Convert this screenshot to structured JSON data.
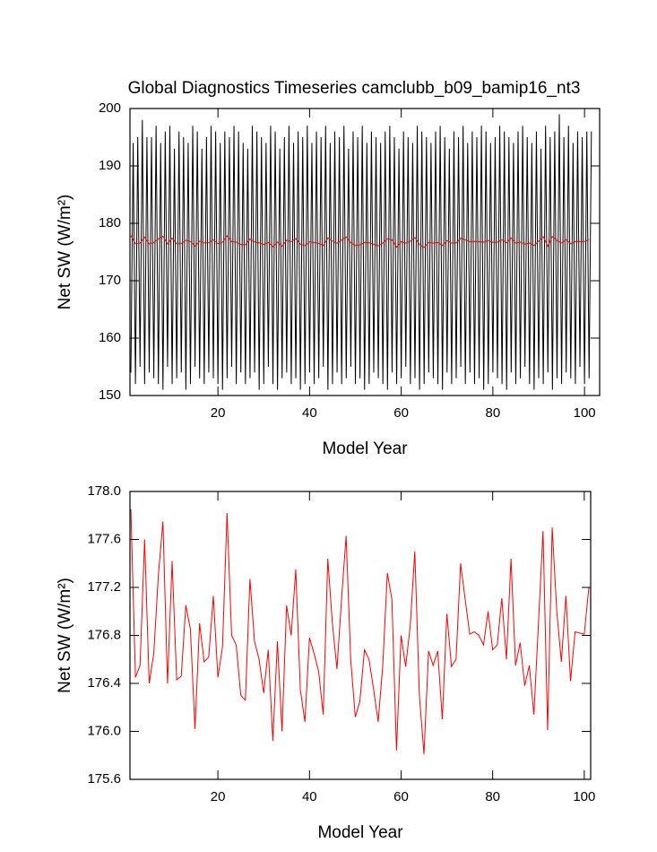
{
  "chart_data": [
    {
      "type": "line",
      "title": "Global Diagnostics Timeseries camclubb_b09_bamip16_nt3",
      "xlabel": "Model Year",
      "ylabel": "Net SW (W/m²)",
      "xlim": [
        0.8,
        103.3
      ],
      "ylim": [
        150,
        200
      ],
      "xticks": [
        20,
        40,
        60,
        80,
        100
      ],
      "yticks": [
        150,
        160,
        170,
        180,
        190,
        200
      ],
      "series": [
        {
          "color": "#000000",
          "x": [
            1,
            1.5,
            2,
            2.5,
            3,
            3.5,
            4,
            4.5,
            5,
            5.5,
            6,
            6.5,
            7,
            7.5,
            8,
            8.5,
            9,
            9.5,
            10,
            10.5,
            11,
            11.5,
            12,
            12.5,
            13,
            13.5,
            14,
            14.5,
            15,
            15.5,
            16,
            16.5,
            17,
            17.5,
            18,
            18.5,
            19,
            19.5,
            20,
            20.5,
            21,
            21.5,
            22,
            22.5,
            23,
            23.5,
            24,
            24.5,
            25,
            25.5,
            26,
            26.5,
            27,
            27.5,
            28,
            28.5,
            29,
            29.5,
            30,
            30.5,
            31,
            31.5,
            32,
            32.5,
            33,
            33.5,
            34,
            34.5,
            35,
            35.5,
            36,
            36.5,
            37,
            37.5,
            38,
            38.5,
            39,
            39.5,
            40,
            40.5,
            41,
            41.5,
            42,
            42.5,
            43,
            43.5,
            44,
            44.5,
            45,
            45.5,
            46,
            46.5,
            47,
            47.5,
            48,
            48.5,
            49,
            49.5,
            50,
            50.5,
            51,
            51.5,
            52,
            52.5,
            53,
            53.5,
            54,
            54.5,
            55,
            55.5,
            56,
            56.5,
            57,
            57.5,
            58,
            58.5,
            59,
            59.5,
            60,
            60.5,
            61,
            61.5,
            62,
            62.5,
            63,
            63.5,
            64,
            64.5,
            65,
            65.5,
            66,
            66.5,
            67,
            67.5,
            68,
            68.5,
            69,
            69.5,
            70,
            70.5,
            71,
            71.5,
            72,
            72.5,
            73,
            73.5,
            74,
            74.5,
            75,
            75.5,
            76,
            76.5,
            77,
            77.5,
            78,
            78.5,
            79,
            79.5,
            80,
            80.5,
            81,
            81.5,
            82,
            82.5,
            83,
            83.5,
            84,
            84.5,
            85,
            85.5,
            86,
            86.5,
            87,
            87.5,
            88,
            88.5,
            89,
            89.5,
            90,
            90.5,
            91,
            91.5,
            92,
            92.5,
            93,
            93.5,
            94,
            94.5,
            95,
            95.5,
            96,
            96.5,
            97,
            97.5,
            98,
            98.5,
            99,
            99.5,
            100,
            100.5,
            101,
            101.5
          ],
          "values": [
            154,
            194,
            152,
            195,
            155,
            198,
            152,
            195,
            154,
            195,
            153,
            197,
            152,
            194,
            151,
            196,
            155,
            197,
            152,
            193,
            153,
            196,
            154,
            195,
            151,
            194,
            152,
            197,
            155,
            196,
            153,
            193,
            152,
            195,
            154,
            197,
            153,
            196,
            152,
            194,
            151,
            196,
            153,
            195,
            155,
            197,
            152,
            196,
            154,
            194,
            152,
            193,
            153,
            197,
            154,
            196,
            151,
            195,
            152,
            194,
            155,
            197,
            152,
            196,
            151,
            193,
            153,
            195,
            154,
            197,
            152,
            194,
            153,
            196,
            151,
            195,
            152,
            197,
            154,
            194,
            152,
            196,
            153,
            195,
            155,
            197,
            151,
            194,
            152,
            196,
            154,
            195,
            152,
            197,
            153,
            193,
            155,
            196,
            152,
            195,
            153,
            197,
            151,
            194,
            152,
            196,
            154,
            195,
            153,
            194,
            152,
            196,
            151,
            197,
            154,
            195,
            152,
            193,
            153,
            196,
            155,
            195,
            152,
            194,
            153,
            197,
            151,
            196,
            152,
            195,
            154,
            194,
            153,
            196,
            152,
            197,
            151,
            195,
            154,
            193,
            152,
            196,
            153,
            195,
            155,
            197,
            152,
            194,
            154,
            196,
            152,
            195,
            153,
            197,
            151,
            196,
            152,
            194,
            154,
            195,
            153,
            197,
            152,
            196,
            151,
            195,
            154,
            194,
            152,
            196,
            153,
            197,
            155,
            195,
            152,
            194,
            151,
            196,
            153,
            193,
            152,
            197,
            154,
            195,
            151,
            196,
            153,
            199,
            152,
            195,
            154,
            197,
            153,
            194,
            152,
            196,
            155,
            195,
            152,
            196,
            153,
            196
          ]
        },
        {
          "color": "#ff0000",
          "x": [
            1,
            2,
            3,
            4,
            5,
            6,
            7,
            8,
            9,
            10,
            11,
            12,
            13,
            14,
            15,
            16,
            17,
            18,
            19,
            20,
            21,
            22,
            23,
            24,
            25,
            26,
            27,
            28,
            29,
            30,
            31,
            32,
            33,
            34,
            35,
            36,
            37,
            38,
            39,
            40,
            41,
            42,
            43,
            44,
            45,
            46,
            47,
            48,
            49,
            50,
            51,
            52,
            53,
            54,
            55,
            56,
            57,
            58,
            59,
            60,
            61,
            62,
            63,
            64,
            65,
            66,
            67,
            68,
            69,
            70,
            71,
            72,
            73,
            74,
            75,
            76,
            77,
            78,
            79,
            80,
            81,
            82,
            83,
            84,
            85,
            86,
            87,
            88,
            89,
            90,
            91,
            92,
            93,
            94,
            95,
            96,
            97,
            98,
            99,
            100,
            101
          ],
          "values": [
            177.85,
            176.45,
            176.55,
            177.6,
            176.4,
            176.65,
            177.3,
            177.75,
            176.4,
            177.42,
            176.43,
            176.46,
            177.05,
            176.85,
            176.02,
            176.9,
            176.58,
            176.62,
            177.13,
            176.45,
            176.7,
            177.82,
            176.8,
            176.72,
            176.3,
            176.26,
            177.27,
            176.75,
            176.6,
            176.32,
            176.68,
            175.92,
            176.75,
            176.0,
            177.05,
            176.8,
            177.35,
            176.35,
            176.08,
            176.78,
            176.65,
            176.5,
            176.14,
            177.44,
            176.9,
            176.52,
            177.1,
            177.63,
            176.6,
            176.12,
            176.25,
            176.68,
            176.6,
            176.35,
            176.08,
            176.55,
            177.32,
            177.1,
            175.84,
            176.8,
            176.54,
            176.88,
            177.5,
            176.3,
            175.81,
            176.67,
            176.55,
            176.67,
            176.1,
            176.98,
            176.54,
            176.6,
            177.4,
            177.1,
            176.81,
            176.83,
            176.8,
            176.72,
            177.0,
            176.68,
            176.72,
            177.11,
            176.6,
            177.44,
            176.55,
            176.74,
            176.38,
            176.55,
            176.14,
            176.9,
            177.67,
            176.01,
            177.7,
            177.0,
            176.58,
            177.13,
            176.42,
            176.83,
            176.82,
            176.81,
            177.2
          ]
        }
      ]
    },
    {
      "type": "line",
      "xlabel": "Model Year",
      "ylabel": "Net SW (W/m²)",
      "xlim": [
        0.8,
        101.4
      ],
      "ylim": [
        175.6,
        178
      ],
      "xticks": [
        20,
        40,
        60,
        80,
        100
      ],
      "yticks": [
        175.6,
        {
          "value": 176,
          "label": "176.0"
        },
        176.4,
        176.8,
        177.2,
        177.6,
        {
          "value": 178,
          "label": "178.0"
        }
      ],
      "series": [
        {
          "color": "#ff0000",
          "x": [
            1,
            2,
            3,
            4,
            5,
            6,
            7,
            8,
            9,
            10,
            11,
            12,
            13,
            14,
            15,
            16,
            17,
            18,
            19,
            20,
            21,
            22,
            23,
            24,
            25,
            26,
            27,
            28,
            29,
            30,
            31,
            32,
            33,
            34,
            35,
            36,
            37,
            38,
            39,
            40,
            41,
            42,
            43,
            44,
            45,
            46,
            47,
            48,
            49,
            50,
            51,
            52,
            53,
            54,
            55,
            56,
            57,
            58,
            59,
            60,
            61,
            62,
            63,
            64,
            65,
            66,
            67,
            68,
            69,
            70,
            71,
            72,
            73,
            74,
            75,
            76,
            77,
            78,
            79,
            80,
            81,
            82,
            83,
            84,
            85,
            86,
            87,
            88,
            89,
            90,
            91,
            92,
            93,
            94,
            95,
            96,
            97,
            98,
            99,
            100,
            101
          ],
          "values": [
            177.85,
            176.45,
            176.55,
            177.6,
            176.4,
            176.65,
            177.3,
            177.75,
            176.4,
            177.42,
            176.43,
            176.46,
            177.05,
            176.85,
            176.02,
            176.9,
            176.58,
            176.62,
            177.13,
            176.45,
            176.7,
            177.82,
            176.8,
            176.72,
            176.3,
            176.26,
            177.27,
            176.75,
            176.6,
            176.32,
            176.68,
            175.92,
            176.75,
            176.0,
            177.05,
            176.8,
            177.35,
            176.35,
            176.08,
            176.78,
            176.65,
            176.5,
            176.14,
            177.44,
            176.9,
            176.52,
            177.1,
            177.63,
            176.6,
            176.12,
            176.25,
            176.68,
            176.6,
            176.35,
            176.08,
            176.55,
            177.32,
            177.1,
            175.84,
            176.8,
            176.54,
            176.88,
            177.5,
            176.3,
            175.81,
            176.67,
            176.55,
            176.67,
            176.1,
            176.98,
            176.54,
            176.6,
            177.4,
            177.1,
            176.81,
            176.83,
            176.8,
            176.72,
            177.0,
            176.68,
            176.72,
            177.11,
            176.6,
            177.44,
            176.55,
            176.74,
            176.38,
            176.55,
            176.14,
            176.9,
            177.67,
            176.01,
            177.7,
            177.0,
            176.58,
            177.13,
            176.42,
            176.83,
            176.82,
            176.81,
            177.2
          ]
        }
      ]
    }
  ]
}
